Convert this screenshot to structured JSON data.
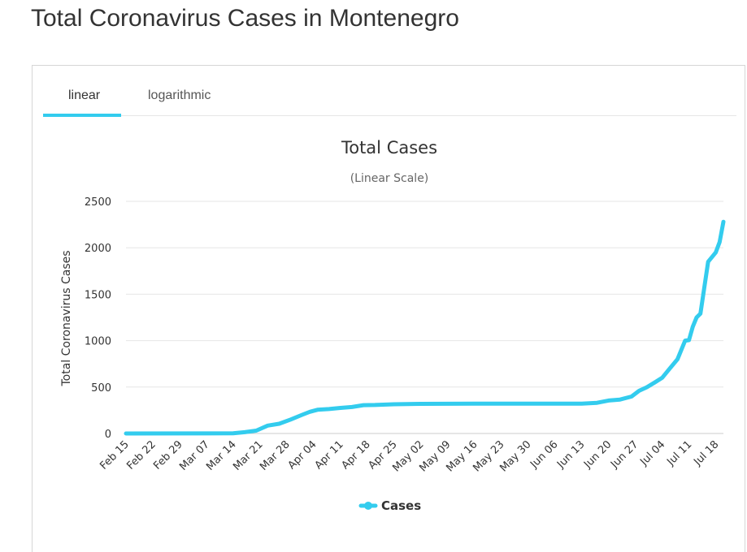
{
  "page": {
    "title": "Total Coronavirus Cases in Montenegro"
  },
  "tabs": [
    {
      "label": "linear",
      "active": true
    },
    {
      "label": "logarithmic",
      "active": false
    }
  ],
  "colors": {
    "series": "#33ccee",
    "grid": "#e6e6e6",
    "text": "#333333",
    "tab_underline": "#33ccee"
  },
  "chart_data": {
    "type": "line",
    "title": "Total Cases",
    "subtitle": "(Linear Scale)",
    "ylabel": "Total Coronavirus Cases",
    "xlabel": "",
    "ylim": [
      0,
      2500
    ],
    "yticks": [
      0,
      500,
      1000,
      1500,
      2000,
      2500
    ],
    "xticks": [
      "Feb 15",
      "Feb 22",
      "Feb 29",
      "Mar 07",
      "Mar 14",
      "Mar 21",
      "Mar 28",
      "Apr 04",
      "Apr 11",
      "Apr 18",
      "Apr 25",
      "May 02",
      "May 09",
      "May 16",
      "May 23",
      "May 30",
      "Jun 06",
      "Jun 13",
      "Jun 20",
      "Jun 27",
      "Jul 04",
      "Jul 11",
      "Jul 18"
    ],
    "grid": true,
    "legend": "bottom-center",
    "series": [
      {
        "name": "Cases",
        "x": [
          "Feb 15",
          "Mar 14",
          "Mar 17",
          "Mar 20",
          "Mar 23",
          "Mar 26",
          "Mar 29",
          "Apr 01",
          "Apr 03",
          "Apr 05",
          "Apr 08",
          "Apr 11",
          "Apr 14",
          "Apr 17",
          "Apr 20",
          "Apr 25",
          "May 02",
          "May 16",
          "May 30",
          "Jun 13",
          "Jun 17",
          "Jun 20",
          "Jun 23",
          "Jun 26",
          "Jun 28",
          "Jun 30",
          "Jul 02",
          "Jul 04",
          "Jul 06",
          "Jul 08",
          "Jul 09",
          "Jul 10",
          "Jul 11",
          "Jul 12",
          "Jul 13",
          "Jul 14",
          "Jul 16",
          "Jul 18",
          "Jul 19",
          "Jul 20"
        ],
        "values": [
          0,
          2,
          14,
          31,
          85,
          105,
          150,
          201,
          233,
          255,
          263,
          275,
          285,
          305,
          307,
          315,
          319,
          322,
          322,
          322,
          330,
          355,
          365,
          398,
          460,
          498,
          548,
          600,
          700,
          800,
          900,
          1000,
          1005,
          1150,
          1250,
          1290,
          1850,
          1950,
          2060,
          2280
        ]
      }
    ]
  }
}
